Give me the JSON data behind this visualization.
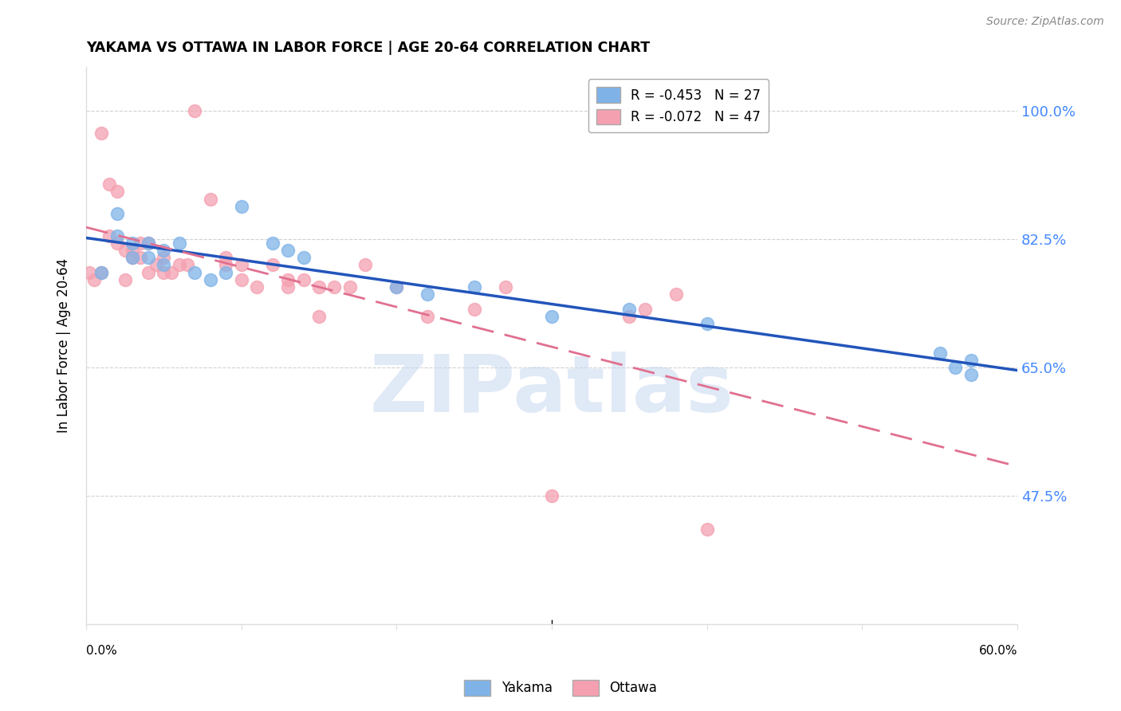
{
  "title": "YAKAMA VS OTTAWA IN LABOR FORCE | AGE 20-64 CORRELATION CHART",
  "source": "Source: ZipAtlas.com",
  "ylabel": "In Labor Force | Age 20-64",
  "yticks": [
    0.475,
    0.65,
    0.825,
    1.0
  ],
  "ytick_labels": [
    "47.5%",
    "65.0%",
    "82.5%",
    "100.0%"
  ],
  "xmin": 0.0,
  "xmax": 0.6,
  "ymin": 0.3,
  "ymax": 1.06,
  "yakama_color": "#7fb3e8",
  "ottawa_color": "#f4a0b0",
  "yakama_line_color": "#2255bb",
  "ottawa_line_color": "#e07090",
  "yakama_R": -0.453,
  "yakama_N": 27,
  "ottawa_R": -0.072,
  "ottawa_N": 47,
  "watermark": "ZIPatlas",
  "watermark_color": "#c8d8f0",
  "grid_color": "#cccccc",
  "axis_color": "#dddddd",
  "right_label_color": "#4488ff",
  "yakama_x": [
    0.01,
    0.02,
    0.02,
    0.03,
    0.03,
    0.04,
    0.04,
    0.05,
    0.05,
    0.06,
    0.07,
    0.08,
    0.09,
    0.1,
    0.12,
    0.13,
    0.14,
    0.2,
    0.22,
    0.25,
    0.3,
    0.35,
    0.4,
    0.55,
    0.56,
    0.57,
    0.57
  ],
  "yakama_y": [
    0.78,
    0.83,
    0.86,
    0.8,
    0.82,
    0.8,
    0.82,
    0.79,
    0.81,
    0.82,
    0.78,
    0.77,
    0.78,
    0.87,
    0.82,
    0.81,
    0.8,
    0.76,
    0.75,
    0.76,
    0.72,
    0.73,
    0.71,
    0.67,
    0.65,
    0.66,
    0.64
  ],
  "ottawa_x": [
    0.002,
    0.005,
    0.01,
    0.01,
    0.015,
    0.015,
    0.02,
    0.02,
    0.025,
    0.025,
    0.03,
    0.03,
    0.035,
    0.035,
    0.04,
    0.04,
    0.045,
    0.05,
    0.05,
    0.055,
    0.06,
    0.065,
    0.07,
    0.08,
    0.09,
    0.09,
    0.1,
    0.1,
    0.11,
    0.12,
    0.13,
    0.13,
    0.14,
    0.15,
    0.15,
    0.16,
    0.17,
    0.18,
    0.2,
    0.22,
    0.25,
    0.27,
    0.3,
    0.35,
    0.36,
    0.38,
    0.4
  ],
  "ottawa_y": [
    0.78,
    0.77,
    0.97,
    0.78,
    0.9,
    0.83,
    0.89,
    0.82,
    0.81,
    0.77,
    0.81,
    0.8,
    0.82,
    0.8,
    0.82,
    0.78,
    0.79,
    0.8,
    0.78,
    0.78,
    0.79,
    0.79,
    1.0,
    0.88,
    0.79,
    0.8,
    0.79,
    0.77,
    0.76,
    0.79,
    0.77,
    0.76,
    0.77,
    0.76,
    0.72,
    0.76,
    0.76,
    0.79,
    0.76,
    0.72,
    0.73,
    0.76,
    0.475,
    0.72,
    0.73,
    0.75,
    0.43
  ]
}
